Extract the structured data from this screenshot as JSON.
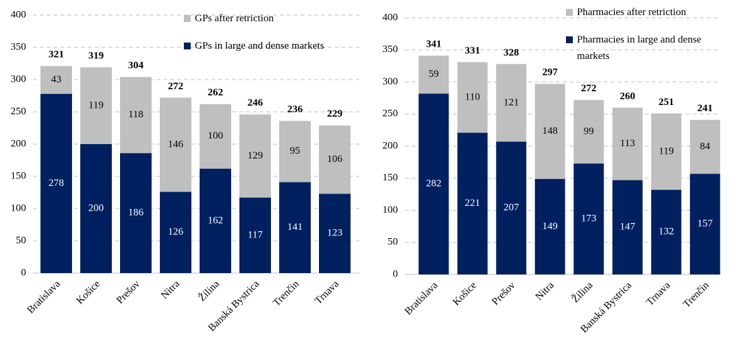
{
  "chart_data": [
    {
      "type": "stacked_bar",
      "categories": [
        "Bratislava",
        "Košice",
        "Prešov",
        "Nitra",
        "Žilina",
        "Banská Bystrica",
        "Trenčin",
        "Trnava"
      ],
      "series": [
        {
          "name": "GPs in large and dense markets",
          "color": "#002060",
          "values": [
            278,
            200,
            186,
            126,
            162,
            117,
            141,
            123
          ]
        },
        {
          "name": "GPs after retriction",
          "color": "#bfbfbf",
          "values": [
            43,
            119,
            118,
            146,
            100,
            129,
            95,
            106
          ]
        }
      ],
      "totals": [
        321,
        319,
        304,
        272,
        262,
        246,
        236,
        229
      ],
      "ylim": [
        0,
        400
      ],
      "yticks": [
        0,
        50,
        100,
        150,
        200,
        250,
        300,
        350,
        400
      ],
      "grid": true
    },
    {
      "type": "stacked_bar",
      "categories": [
        "Bratislava",
        "Košice",
        "Prešov",
        "Nitra",
        "Žilina",
        "Banská Bystrica",
        "Trnava",
        "Trenčin"
      ],
      "series": [
        {
          "name": "Pharmacies in large and dense markets",
          "color": "#002060",
          "values": [
            282,
            221,
            207,
            149,
            173,
            147,
            132,
            157
          ]
        },
        {
          "name": "Pharmacies after retriction",
          "color": "#bfbfbf",
          "values": [
            59,
            110,
            121,
            148,
            99,
            113,
            119,
            84
          ]
        }
      ],
      "totals": [
        341,
        331,
        328,
        297,
        272,
        260,
        251,
        241
      ],
      "ylim": [
        0,
        400
      ],
      "yticks": [
        0,
        50,
        100,
        150,
        200,
        250,
        300,
        350,
        400
      ],
      "grid": true
    }
  ]
}
